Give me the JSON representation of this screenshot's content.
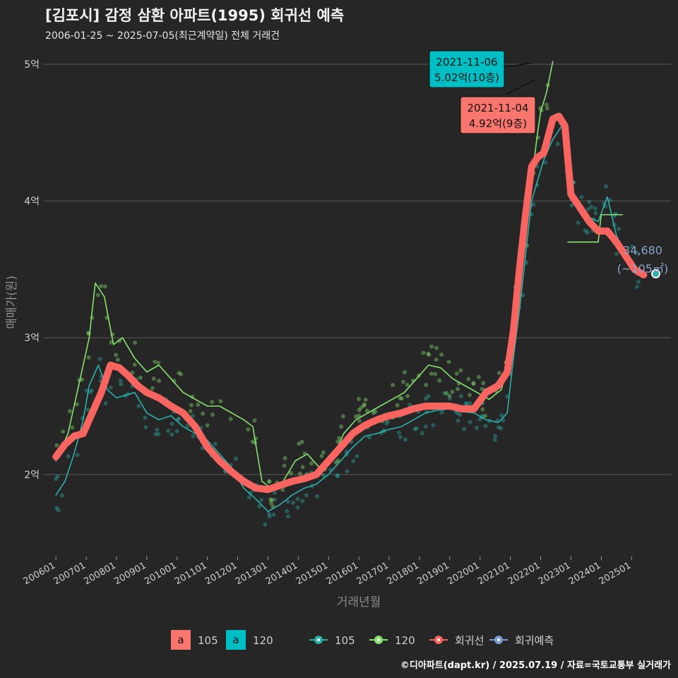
{
  "title": "[김포시] 감정 삼환 아파트(1995) 회귀선 예측",
  "subtitle": "2006-01-25 ~ 2025-07-05(최근계약일) 전체 거래건",
  "caption": "©디아파트(dapt.kr) / 2025.07.19 / 자료=국토교통부 실거래가",
  "colors": {
    "s105": "#2bb0aa",
    "s120": "#86e36e",
    "regression": "#f8645f",
    "forecast": "#7c9bd1",
    "label105": "#f8766d",
    "label120": "#00bfc4",
    "grid": "#595959"
  },
  "chart_data": {
    "type": "line",
    "xlabel": "거래년월",
    "ylabel": "매매가(원)",
    "ylim": [
      1.4,
      5.15
    ],
    "y_unit": "억",
    "y_ticks": [
      {
        "value": 2,
        "label": "2억"
      },
      {
        "value": 3,
        "label": "3억"
      },
      {
        "value": 4,
        "label": "4억"
      },
      {
        "value": 5,
        "label": "5억"
      }
    ],
    "x_ticks": [
      "200601",
      "200701",
      "200801",
      "200901",
      "201001",
      "201101",
      "201201",
      "201301",
      "201401",
      "201501",
      "201601",
      "201701",
      "201801",
      "201901",
      "202001",
      "202101",
      "202201",
      "202301",
      "202401",
      "202501"
    ],
    "x_range": [
      2005.6,
      2026.3
    ],
    "series": [
      {
        "name": "105",
        "kind": "moving-average",
        "x": [
          2006.0,
          2006.3,
          2006.6,
          2006.9,
          2007.1,
          2007.4,
          2007.7,
          2008.0,
          2008.3,
          2008.6,
          2009.0,
          2009.4,
          2009.8,
          2010.2,
          2010.6,
          2011.0,
          2011.4,
          2011.8,
          2012.2,
          2012.6,
          2013.0,
          2013.4,
          2013.8,
          2014.2,
          2014.6,
          2015.0,
          2015.4,
          2015.8,
          2016.2,
          2016.6,
          2017.0,
          2017.4,
          2017.8,
          2018.2,
          2018.6,
          2019.0,
          2019.4,
          2019.8,
          2020.2,
          2020.6,
          2020.9,
          2021.1,
          2021.3,
          2021.5,
          2021.7,
          2021.9,
          2022.1,
          2022.4,
          2022.7,
          2023.0,
          2023.3,
          2023.6,
          2023.9,
          2024.2,
          2024.5,
          2024.8,
          2025.1,
          2025.4
        ],
        "y": [
          1.85,
          1.95,
          2.15,
          2.4,
          2.65,
          2.8,
          2.62,
          2.56,
          2.58,
          2.6,
          2.45,
          2.4,
          2.43,
          2.35,
          2.3,
          2.25,
          2.15,
          2.05,
          1.9,
          1.82,
          1.73,
          1.78,
          1.85,
          1.9,
          1.93,
          2.0,
          2.1,
          2.2,
          2.28,
          2.3,
          2.33,
          2.35,
          2.4,
          2.45,
          2.47,
          2.48,
          2.46,
          2.45,
          2.4,
          2.38,
          2.45,
          2.85,
          3.2,
          3.6,
          4.0,
          4.15,
          4.3,
          4.45,
          4.55,
          4.05,
          3.95,
          3.88,
          3.85,
          4.03,
          3.75,
          3.6,
          3.5,
          3.47
        ]
      },
      {
        "name": "120",
        "kind": "moving-average",
        "x": [
          2006.0,
          2006.4,
          2006.8,
          2007.1,
          2007.3,
          2007.6,
          2007.9,
          2008.2,
          2008.6,
          2009.0,
          2009.4,
          2009.8,
          2010.2,
          2010.6,
          2011.0,
          2011.4,
          2011.8,
          2012.2,
          2012.5,
          2012.8,
          2013.1,
          2013.5,
          2013.9,
          2014.3,
          2014.7,
          2015.1,
          2015.5,
          2015.9,
          2016.3,
          2016.7,
          2017.1,
          2017.5,
          2017.9,
          2018.3,
          2018.7,
          2019.1,
          2019.5,
          2019.9,
          2020.3,
          2020.7,
          2021.0,
          2021.2,
          2021.5,
          2021.7,
          2021.9,
          2022.0,
          2022.2,
          2022.4
        ],
        "y": [
          2.1,
          2.3,
          2.7,
          3.0,
          3.4,
          3.3,
          2.95,
          3.0,
          2.85,
          2.75,
          2.8,
          2.7,
          2.6,
          2.55,
          2.5,
          2.5,
          2.45,
          2.4,
          2.35,
          1.95,
          1.9,
          1.95,
          2.1,
          2.15,
          2.05,
          2.1,
          2.3,
          2.4,
          2.45,
          2.5,
          2.55,
          2.6,
          2.7,
          2.8,
          2.78,
          2.7,
          2.65,
          2.6,
          2.55,
          2.62,
          2.85,
          3.3,
          3.7,
          4.15,
          4.5,
          4.65,
          4.8,
          5.02
        ]
      },
      {
        "name": "120",
        "kind": "moving-average-recent",
        "x": [
          2022.9,
          2023.4,
          2023.9,
          2024.0,
          2024.4,
          2024.7
        ],
        "y": [
          3.7,
          3.7,
          3.7,
          3.9,
          3.9,
          3.9
        ]
      },
      {
        "name": "회귀선",
        "kind": "regression",
        "x": [
          2006.0,
          2006.3,
          2006.6,
          2006.9,
          2007.2,
          2007.5,
          2007.8,
          2008.1,
          2008.4,
          2008.7,
          2009.0,
          2009.4,
          2009.8,
          2010.2,
          2010.6,
          2011.0,
          2011.4,
          2011.8,
          2012.2,
          2012.6,
          2013.0,
          2013.4,
          2013.8,
          2014.2,
          2014.6,
          2015.0,
          2015.4,
          2015.8,
          2016.2,
          2016.6,
          2017.0,
          2017.4,
          2017.8,
          2018.2,
          2018.6,
          2019.0,
          2019.4,
          2019.8,
          2020.2,
          2020.6,
          2020.9,
          2021.1,
          2021.3,
          2021.5,
          2021.7,
          2021.9,
          2022.1,
          2022.4,
          2022.6,
          2022.8,
          2023.0,
          2023.3,
          2023.6,
          2023.9,
          2024.2,
          2024.5,
          2024.8,
          2025.1,
          2025.4
        ],
        "y": [
          2.13,
          2.22,
          2.28,
          2.3,
          2.45,
          2.6,
          2.8,
          2.78,
          2.72,
          2.65,
          2.6,
          2.56,
          2.5,
          2.45,
          2.35,
          2.2,
          2.1,
          2.02,
          1.95,
          1.9,
          1.89,
          1.92,
          1.95,
          1.97,
          2.0,
          2.1,
          2.2,
          2.3,
          2.36,
          2.4,
          2.43,
          2.45,
          2.48,
          2.5,
          2.5,
          2.5,
          2.48,
          2.48,
          2.6,
          2.65,
          2.75,
          3.05,
          3.5,
          3.9,
          4.25,
          4.32,
          4.35,
          4.6,
          4.62,
          4.55,
          4.05,
          3.95,
          3.85,
          3.78,
          3.78,
          3.7,
          3.6,
          3.5,
          3.46
        ]
      },
      {
        "name": "회귀예측",
        "kind": "forecast",
        "x": [
          2025.8
        ],
        "y": [
          3.468
        ]
      }
    ],
    "annotations": [
      {
        "date": "2021-11-06",
        "price": "5.02억(10층)",
        "series": "120",
        "x": 2021.85,
        "y": 5.02
      },
      {
        "date": "2021-11-04",
        "price": "4.92억(9층)",
        "series": "105",
        "x": 2021.84,
        "y": 4.92
      },
      {
        "text": "34,680",
        "sub": "(~105㎡)",
        "x": 2025.8,
        "y": 3.468
      }
    ],
    "legend": {
      "placement": "bottom",
      "items": [
        {
          "key": "a",
          "label": "105",
          "type": "label-fill",
          "color": "#f8766d"
        },
        {
          "key": "a",
          "label": "120",
          "type": "label-fill",
          "color": "#00bfc4"
        },
        {
          "label": "105",
          "type": "line-point",
          "color": "#2bb0aa"
        },
        {
          "label": "120",
          "type": "line-point",
          "color": "#86e36e"
        },
        {
          "label": "회귀선",
          "type": "line-point",
          "color": "#f8645f"
        },
        {
          "label": "회귀예측",
          "type": "line-point",
          "color": "#7c9bd1"
        }
      ]
    }
  }
}
